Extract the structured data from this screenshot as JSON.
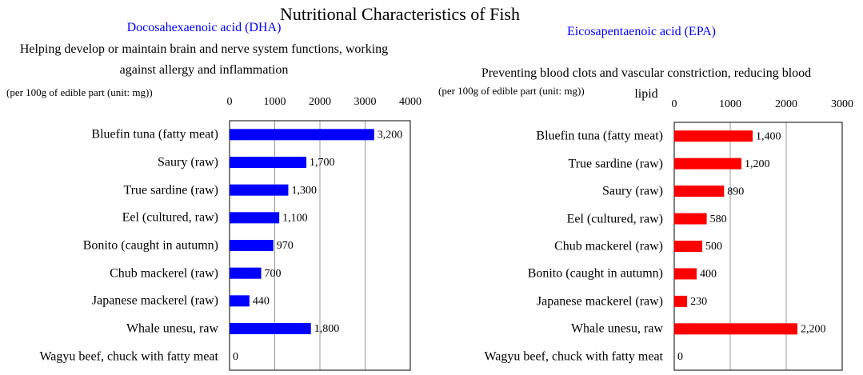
{
  "title": "Nutritional Characteristics of Fish",
  "chart_data": [
    {
      "type": "bar",
      "orientation": "horizontal",
      "title": "Docosahexaenoic acid (DHA)",
      "subtitle": "Helping develop or maintain brain and nerve system functions, working against allergy and inflammation",
      "note": "(per 100g of edible part (unit: mg))",
      "categories": [
        "Bluefin tuna (fatty meat)",
        "Saury (raw)",
        "True sardine (raw)",
        "Eel (cultured, raw)",
        "Bonito (caught in autumn)",
        "Chub mackerel (raw)",
        "Japanese mackerel (raw)",
        "Whale unesu, raw",
        "Wagyu beef, chuck with fatty meat"
      ],
      "values": [
        3200,
        1700,
        1300,
        1100,
        970,
        700,
        440,
        1800,
        0
      ],
      "value_labels": [
        "3,200",
        "1,700",
        "1,300",
        "1,100",
        "970",
        "700",
        "440",
        "1,800",
        "0"
      ],
      "color": "#0000ff",
      "xlim": [
        0,
        4000
      ],
      "xticks": [
        0,
        1000,
        2000,
        3000,
        4000
      ],
      "grid": true
    },
    {
      "type": "bar",
      "orientation": "horizontal",
      "title": "Eicosapentaenoic acid (EPA)",
      "subtitle": "Preventing blood clots and vascular constriction, reducing blood lipid",
      "note": "(per 100g of edible part (unit: mg))",
      "categories": [
        "Bluefin tuna (fatty meat)",
        "True sardine (raw)",
        "Saury (raw)",
        "Eel (cultured, raw)",
        "Chub mackerel (raw)",
        "Bonito (caught in autumn)",
        "Japanese mackerel (raw)",
        "Whale unesu, raw",
        "Wagyu beef, chuck with fatty meat"
      ],
      "values": [
        1400,
        1200,
        890,
        580,
        500,
        400,
        230,
        2200,
        0
      ],
      "value_labels": [
        "1,400",
        "1,200",
        "890",
        "580",
        "500",
        "400",
        "230",
        "2,200",
        "0"
      ],
      "color": "#ff0000",
      "xlim": [
        0,
        3000
      ],
      "xticks": [
        0,
        1000,
        2000,
        3000
      ],
      "grid": true
    }
  ]
}
